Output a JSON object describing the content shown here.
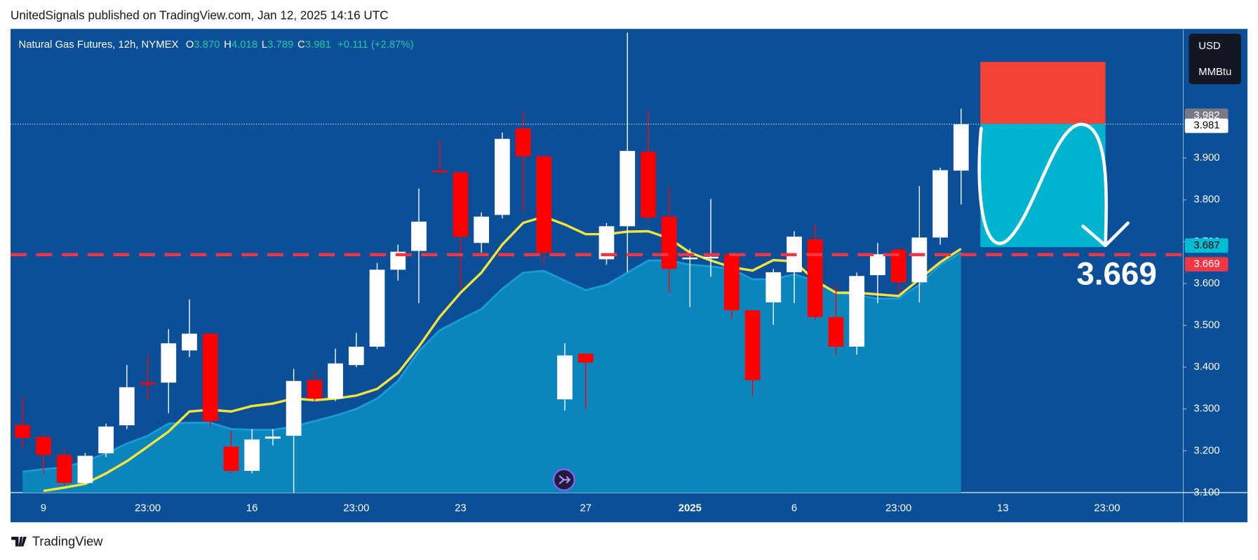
{
  "header": {
    "text": "UnitedSignals published on TradingView.com, Jan 12, 2025 14:16 UTC"
  },
  "footer": {
    "brand": "TradingView"
  },
  "chart_data": {
    "type": "candlestick",
    "title": "Natural Gas Futures, 12h, NYMEX",
    "legend_values": [
      {
        "key": "O",
        "text": "3.870"
      },
      {
        "key": "H",
        "text": "4.018"
      },
      {
        "key": "L",
        "text": "3.789"
      },
      {
        "key": "C",
        "text": "3.981"
      }
    ],
    "change": "+0.111 (+2.87%)",
    "currency": [
      "USD",
      "MMBtu"
    ],
    "categories": [
      null,
      "9",
      null,
      null,
      null,
      null,
      "23:00",
      null,
      null,
      null,
      null,
      "16",
      null,
      null,
      null,
      null,
      "23:00",
      null,
      null,
      null,
      null,
      "23",
      null,
      null,
      null,
      null,
      null,
      "27",
      null,
      null,
      null,
      null,
      "2025",
      null,
      null,
      null,
      null,
      "6",
      null,
      null,
      null,
      null,
      "23:00",
      null,
      null,
      null,
      null,
      "13",
      null,
      null,
      null,
      null,
      "23:00",
      null,
      null,
      null
    ],
    "bold_categories": [
      "2025"
    ],
    "open": [
      3.262,
      3.233,
      3.19,
      3.123,
      3.194,
      3.261,
      3.363,
      3.363,
      3.44,
      3.48,
      3.21,
      3.152,
      3.229,
      3.236,
      3.369,
      3.325,
      3.405,
      3.449,
      3.633,
      3.678,
      3.87,
      3.866,
      3.697,
      3.764,
      3.971,
      3.904,
      3.323,
      3.432,
      3.658,
      3.737,
      3.915,
      3.76,
      3.658,
      3.66,
      3.67,
      3.536,
      3.555,
      3.627,
      3.706,
      3.52,
      3.449,
      3.62,
      3.681,
      3.603,
      3.71,
      3.87,
      null,
      null,
      null,
      null,
      null,
      null,
      null,
      null,
      null,
      null
    ],
    "high": [
      3.33,
      3.24,
      3.205,
      3.195,
      3.265,
      3.405,
      3.428,
      3.491,
      3.562,
      3.482,
      3.248,
      3.252,
      3.252,
      3.396,
      3.392,
      3.444,
      3.482,
      3.649,
      3.693,
      3.827,
      3.942,
      3.866,
      3.77,
      3.961,
      4.013,
      3.91,
      3.457,
      3.434,
      3.745,
      4.2,
      4.015,
      3.833,
      3.683,
      3.802,
      3.678,
      3.536,
      3.635,
      3.725,
      3.741,
      3.597,
      3.626,
      3.697,
      3.687,
      3.833,
      3.877,
      4.018,
      null,
      null,
      null,
      null,
      null,
      null,
      null,
      null,
      null,
      null
    ],
    "low": [
      3.205,
      3.145,
      3.117,
      3.12,
      3.185,
      3.252,
      3.319,
      3.29,
      3.424,
      3.26,
      3.146,
      3.146,
      3.213,
      3.1,
      3.319,
      3.319,
      3.4,
      3.444,
      3.607,
      3.553,
      3.864,
      3.587,
      3.674,
      3.756,
      3.77,
      3.645,
      3.296,
      3.3,
      3.645,
      3.628,
      3.75,
      3.578,
      3.543,
      3.616,
      3.515,
      3.332,
      3.501,
      3.553,
      3.511,
      3.43,
      3.43,
      3.553,
      3.578,
      3.555,
      3.693,
      3.789,
      null,
      null,
      null,
      null,
      null,
      null,
      null,
      null,
      null,
      null
    ],
    "close": [
      3.231,
      3.19,
      3.123,
      3.188,
      3.258,
      3.352,
      3.358,
      3.457,
      3.48,
      3.271,
      3.152,
      3.227,
      3.234,
      3.367,
      3.325,
      3.409,
      3.449,
      3.633,
      3.676,
      3.748,
      3.866,
      3.712,
      3.76,
      3.946,
      3.904,
      3.674,
      3.428,
      3.411,
      3.737,
      3.917,
      3.758,
      3.635,
      3.662,
      3.664,
      3.536,
      3.369,
      3.627,
      3.712,
      3.52,
      3.449,
      3.618,
      3.67,
      3.603,
      3.71,
      3.871,
      3.981,
      null,
      null,
      null,
      null,
      null,
      null,
      null,
      null,
      null,
      null
    ],
    "up_color": "#ffffff",
    "down_color": "#ff0000",
    "series": [
      {
        "color": "#1b9ad6",
        "fill": "#0b86bd",
        "style": "area",
        "values": [
          3.15,
          3.156,
          3.16,
          3.175,
          3.194,
          3.217,
          3.236,
          3.265,
          3.267,
          3.267,
          3.252,
          3.25,
          3.25,
          3.258,
          3.271,
          3.284,
          3.3,
          3.325,
          3.367,
          3.438,
          3.488,
          3.514,
          3.539,
          3.587,
          3.626,
          3.63,
          3.607,
          3.584,
          3.597,
          3.626,
          3.655,
          3.655,
          3.645,
          3.641,
          3.635,
          3.61,
          3.61,
          3.622,
          3.607,
          3.578,
          3.572,
          3.564,
          3.564,
          3.597,
          3.645,
          3.674,
          null,
          null,
          null,
          null,
          null,
          null,
          null,
          null,
          null,
          null
        ]
      },
      {
        "color": "#f5e33b",
        "style": "line",
        "values": [
          null,
          3.104,
          3.112,
          3.121,
          3.146,
          3.175,
          3.21,
          3.246,
          3.294,
          3.298,
          3.294,
          3.307,
          3.313,
          3.325,
          3.321,
          3.325,
          3.332,
          3.348,
          3.386,
          3.449,
          3.52,
          3.578,
          3.626,
          3.693,
          3.745,
          3.76,
          3.741,
          3.718,
          3.718,
          3.724,
          3.725,
          3.708,
          3.674,
          3.655,
          3.639,
          3.631,
          3.656,
          3.653,
          3.607,
          3.578,
          3.578,
          3.574,
          3.57,
          3.61,
          3.651,
          3.683,
          null,
          null,
          null,
          null,
          null,
          null,
          null,
          null,
          null,
          null
        ]
      }
    ],
    "ylim": [
      3.1,
      4.207
    ],
    "yticks": [
      {
        "value": 3.1,
        "label": "3.100"
      },
      {
        "value": 3.2,
        "label": "3.200"
      },
      {
        "value": 3.3,
        "label": "3.300"
      },
      {
        "value": 3.4,
        "label": "3.400"
      },
      {
        "value": 3.5,
        "label": "3.500"
      },
      {
        "value": 3.6,
        "label": "3.600"
      },
      {
        "value": 3.7,
        "label": "3.700"
      },
      {
        "value": 3.8,
        "label": "3.800"
      },
      {
        "value": 3.9,
        "label": "3.900"
      }
    ],
    "price_labels": [
      {
        "value": 3.982,
        "color": "#787b86",
        "text_color": "#ffffff"
      },
      {
        "value": 3.981,
        "color": "#ffffff",
        "text_color": "#000000"
      },
      {
        "value": 3.687,
        "color": "#00bcd4",
        "text_color": "#000000"
      },
      {
        "value": 3.669,
        "color": "#f23645",
        "text_color": "#ffffff"
      }
    ],
    "position": {
      "entry": 3.982,
      "stop": 4.13,
      "target": 3.687,
      "start": 46,
      "end": 52,
      "stop_color": "#f44336",
      "target_color": "#00b4d0"
    }
  }
}
